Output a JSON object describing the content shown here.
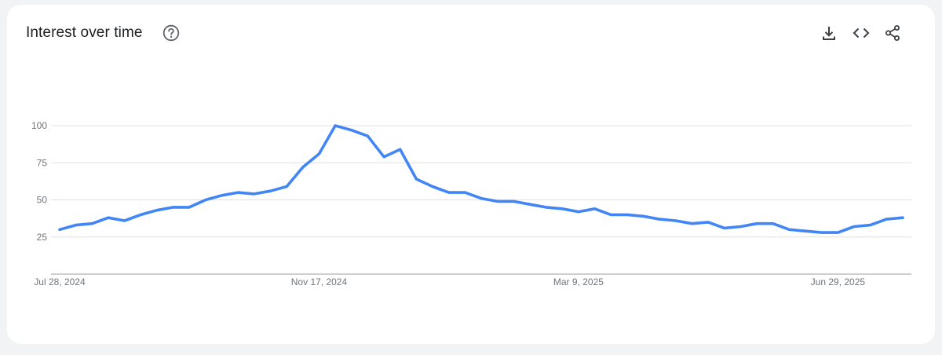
{
  "header": {
    "title": "Interest over time",
    "help_icon": "help-circle-icon",
    "actions": [
      {
        "name": "download-button",
        "icon": "download-icon"
      },
      {
        "name": "embed-button",
        "icon": "code-icon"
      },
      {
        "name": "share-button",
        "icon": "share-icon"
      }
    ]
  },
  "colors": {
    "line": "#4285f4",
    "grid": "#e0e0e0",
    "axis": "#9aa0a6",
    "label": "#70757a",
    "background": "#f1f3f4"
  },
  "chart_data": {
    "type": "line",
    "title": "Interest over time",
    "xlabel": "",
    "ylabel": "",
    "ylim": [
      0,
      100
    ],
    "yticks": [
      25,
      50,
      75,
      100
    ],
    "x_tick_labels": [
      "Jul 28, 2024",
      "Nov 17, 2024",
      "Mar 9, 2025",
      "Jun 29, 2025"
    ],
    "x_tick_indices": [
      0,
      16,
      32,
      48
    ],
    "grid": true,
    "legend": "none",
    "series": [
      {
        "values": [
          30,
          33,
          34,
          38,
          36,
          40,
          43,
          45,
          45,
          50,
          53,
          55,
          54,
          56,
          59,
          72,
          81,
          100,
          97,
          93,
          79,
          84,
          64,
          59,
          55,
          55,
          51,
          49,
          49,
          47,
          45,
          44,
          42,
          44,
          40,
          40,
          39,
          37,
          36,
          34,
          35,
          31,
          32,
          34,
          34,
          30,
          29,
          28,
          28,
          32,
          33,
          37,
          38
        ]
      }
    ]
  }
}
